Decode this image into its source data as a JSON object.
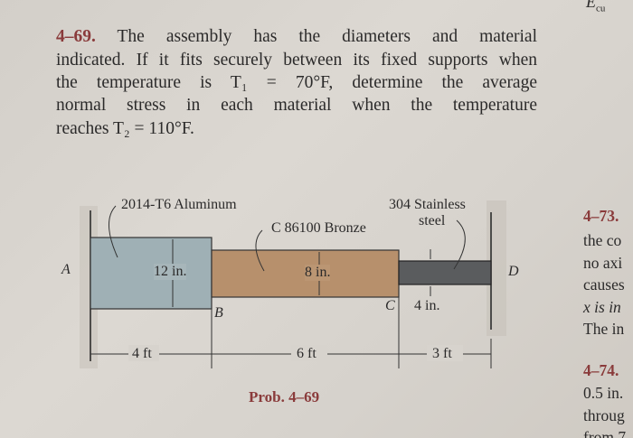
{
  "header": {
    "corner_text": "E",
    "corner_sub": "cu"
  },
  "problem": {
    "number": "4–69.",
    "lines": [
      "The assembly has the diameters and material",
      "indicated. If it fits securely between its fixed supports when",
      "the temperature is T₁ = 70°F, determine the average",
      "normal stress in each material when the temperature",
      "reaches T₂ = 110°F."
    ]
  },
  "figure": {
    "aluminum_label": "2014-T6 Aluminum",
    "bronze_label": "C 86100 Bronze",
    "steel_label_1": "304 Stainless",
    "steel_label_2": "steel",
    "point_a": "A",
    "point_b": "B",
    "point_c": "C",
    "point_d": "D",
    "d_al": "12 in.",
    "d_br": "8 in.",
    "d_st": "4 in.",
    "len_al": "4 ft",
    "len_br": "6 ft",
    "len_st": "3 ft",
    "caption": "Prob. 4–69",
    "colors": {
      "aluminum": "#9fb0b5",
      "bronze": "#b7906c",
      "steel": "#5a5c5e"
    }
  },
  "right_column": {
    "p73_number": "4–73.",
    "p73_lines": [
      "the co",
      "no axi",
      "causes",
      "x is in",
      "The in"
    ],
    "p74_number": "4–74.",
    "p74_lines": [
      "0.5 in.",
      "throug",
      "from 7"
    ]
  }
}
